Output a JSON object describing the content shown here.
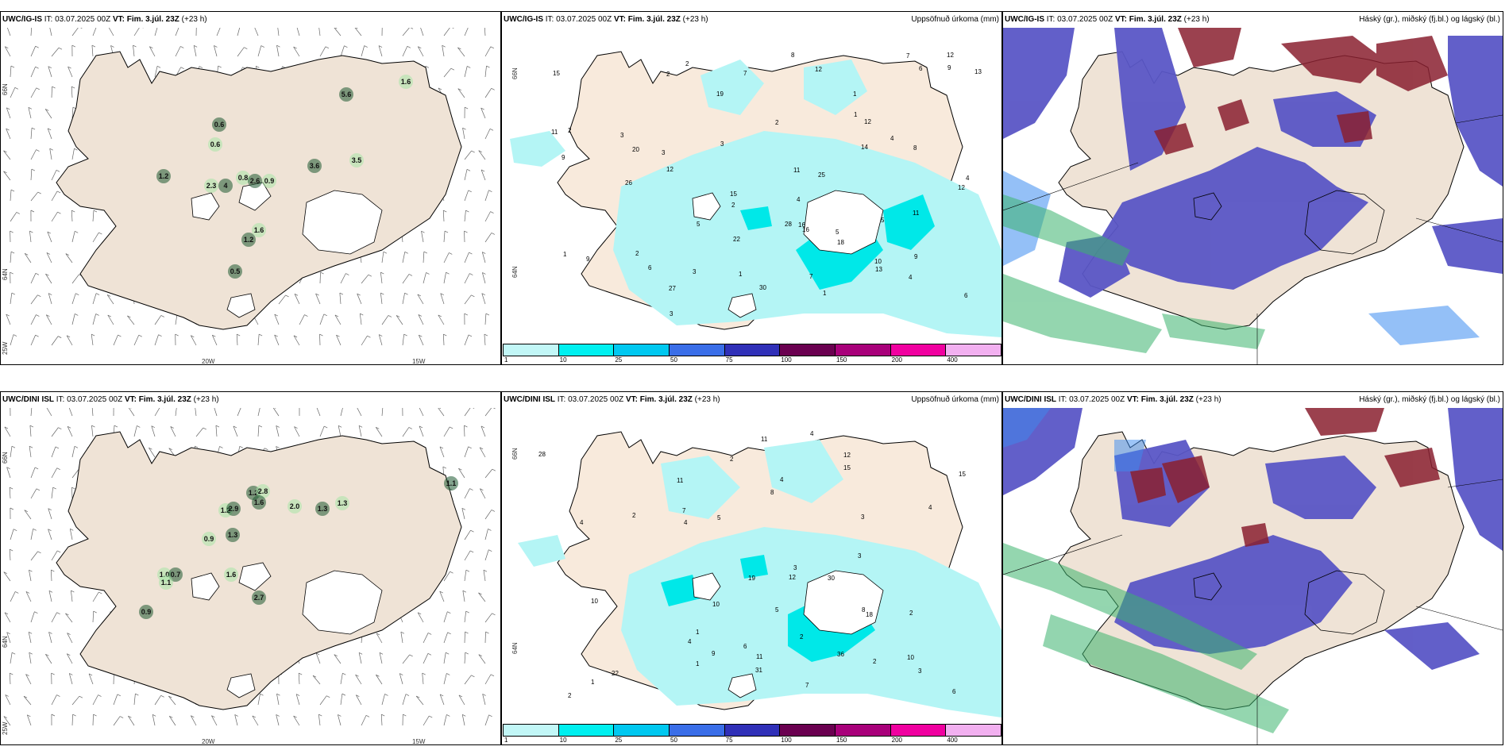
{
  "panels": [
    {
      "id": "p1",
      "model": "UWC/IG-IS",
      "init_label": "IT:",
      "init": "03.07.2025 00Z",
      "valid_label": "VT:",
      "valid": "Fim. 3.júl. 23Z",
      "lead": "(+23 h)",
      "legend": ""
    },
    {
      "id": "p2",
      "model": "UWC/IG-IS",
      "init_label": "IT:",
      "init": "03.07.2025 00Z",
      "valid_label": "VT:",
      "valid": "Fim. 3.júl. 23Z",
      "lead": "(+23 h)",
      "legend": "Uppsöfnuð úrkoma (mm)"
    },
    {
      "id": "p3",
      "model": "UWC/IG-IS",
      "init_label": "IT:",
      "init": "03.07.2025 00Z",
      "valid_label": "VT:",
      "valid": "Fim. 3.júl. 23Z",
      "lead": "(+23 h)",
      "legend": "Háský (gr.), miðský (fj.bl.) og lágský (bl.)"
    },
    {
      "id": "p4",
      "model": "UWC/DINI ISL",
      "init_label": "IT:",
      "init": "03.07.2025 00Z",
      "valid_label": "VT:",
      "valid": "Fim. 3.júl. 23Z",
      "lead": "(+23 h)",
      "legend": ""
    },
    {
      "id": "p5",
      "model": "UWC/DINI ISL",
      "init_label": "IT:",
      "init": "03.07.2025 00Z",
      "valid_label": "VT:",
      "valid": "Fim. 3.júl. 23Z",
      "lead": "(+23 h)",
      "legend": "Uppsöfnuð úrkoma (mm)"
    },
    {
      "id": "p6",
      "model": "UWC/DINI ISL",
      "init_label": "IT:",
      "init": "03.07.2025 00Z",
      "valid_label": "VT:",
      "valid": "Fim. 3.júl. 23Z",
      "lead": "(+23 h)",
      "legend": "Háský (gr.), miðský (fj.bl.) og lágský (bl.)"
    }
  ],
  "grid_labels": {
    "lat66": "66N",
    "lat64": "64N",
    "lon25": "25W",
    "lon20": "20W",
    "lon15": "15W"
  },
  "colorbar": {
    "ticks": [
      "1",
      "10",
      "25",
      "50",
      "75",
      "100",
      "150",
      "200",
      "400"
    ],
    "colors": [
      "#c2f7f7",
      "#00f0f0",
      "#00c8f0",
      "#3a6ee8",
      "#3030b8",
      "#6a0050",
      "#a8007a",
      "#f000a0",
      "#f2b0f0"
    ]
  },
  "colors": {
    "land": "#efe3d6",
    "land_pale": "#f8eadc",
    "precip_light": "#b4f5f5",
    "precip_mid": "#00e8e8",
    "glacier": "#ffffff",
    "shower_dark": "#1e5a32",
    "shower_light": "#a8e6a8",
    "cloud_low": "#5a56c6",
    "cloud_mid": "#3c8cf0",
    "cloud_high": "#8a2030",
    "cloud_high2": "#b05050",
    "green": "#3cb46e"
  },
  "shower_values_top": [
    "0.6",
    "0.6",
    "1.2",
    "2.3",
    "4",
    "0.8",
    "2.6",
    "0.9",
    "5.6",
    "1.6",
    "3.6",
    "3.5",
    "1.2",
    "1.6",
    "0.5"
  ],
  "shower_values_bottom": [
    "1.2",
    "2.8",
    "1.6",
    "1.2",
    "2.9",
    "2.0",
    "1.3",
    "1.3",
    "1.1",
    "0.9",
    "1.3",
    "1.0",
    "0.7",
    "1.1",
    "0.9",
    "1.6",
    "2.7"
  ],
  "precip_values_top": [
    "1",
    "2",
    "2",
    "3",
    "4",
    "7",
    "12",
    "12",
    "2",
    "6",
    "9",
    "11",
    "15",
    "16",
    "14",
    "7",
    "9",
    "6",
    "5",
    "8",
    "10",
    "16",
    "27",
    "13",
    "25",
    "12",
    "26",
    "20",
    "30",
    "19",
    "18",
    "12",
    "1",
    "3",
    "2",
    "1",
    "8",
    "2",
    "4",
    "5",
    "7",
    "11",
    "13",
    "9",
    "12",
    "11",
    "28",
    "22",
    "4",
    "9",
    "5",
    "2",
    "3",
    "1",
    "15",
    "6",
    "4",
    "3",
    "3",
    "1"
  ],
  "precip_values_bottom": [
    "1",
    "2",
    "3",
    "5",
    "2",
    "4",
    "10",
    "12",
    "2",
    "4",
    "6",
    "4",
    "9",
    "11",
    "36",
    "7",
    "8",
    "10",
    "19",
    "15",
    "28",
    "22",
    "31",
    "30",
    "18",
    "15",
    "5",
    "8",
    "4",
    "2",
    "3",
    "10",
    "4",
    "2",
    "12",
    "7",
    "11",
    "3",
    "4",
    "6",
    "2",
    "1",
    "11",
    "1",
    "3"
  ]
}
